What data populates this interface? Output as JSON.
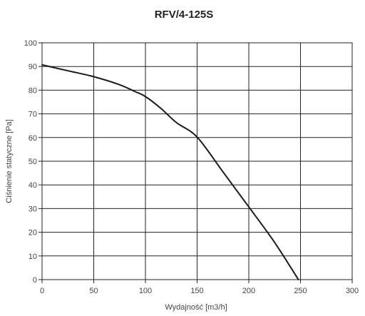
{
  "chart_data": {
    "type": "line",
    "title": "RFV/4-125S",
    "xlabel": "Wydajność [m3/h]",
    "ylabel": "Ciśnienie statyczne [Pa]",
    "xlim": [
      0,
      300
    ],
    "ylim": [
      0,
      100
    ],
    "xticks": [
      "0",
      "50",
      "100",
      "150",
      "200",
      "250",
      "300"
    ],
    "yticks": [
      "0",
      "10",
      "20",
      "30",
      "40",
      "50",
      "60",
      "70",
      "80",
      "90",
      "100"
    ],
    "grid": true,
    "series": [
      {
        "color": "#1a1a1a",
        "x": [
          0,
          25,
          50,
          75,
          90,
          100,
          115,
          130,
          150,
          175,
          200,
          225,
          248
        ],
        "y": [
          90.7,
          88.2,
          85.7,
          82.3,
          79.4,
          77.3,
          72.3,
          66.3,
          60.2,
          45.5,
          30.7,
          15.7,
          0
        ]
      }
    ]
  }
}
